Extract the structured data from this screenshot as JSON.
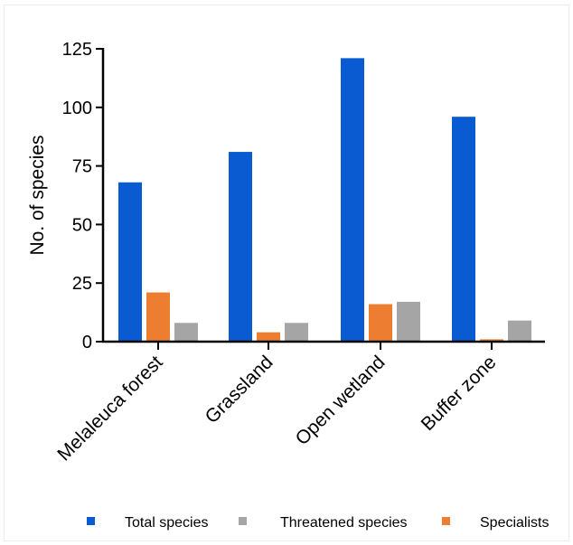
{
  "chart_data": {
    "type": "bar",
    "title": "",
    "xlabel": "",
    "ylabel": "No. of species",
    "ylim": [
      0,
      125
    ],
    "yticks": [
      0,
      25,
      50,
      75,
      100,
      125
    ],
    "grid": false,
    "legend_position": "bottom",
    "categories": [
      "Melaleuca forest",
      "Grassland",
      "Open wetland",
      "Buffer zone"
    ],
    "series": [
      {
        "name": "Total species",
        "color": "#0a5bd1",
        "values": [
          68,
          81,
          121,
          96
        ]
      },
      {
        "name": "Specialists",
        "color": "#ed7d31",
        "values": [
          21,
          4,
          16,
          1
        ]
      },
      {
        "name": "Threatened species",
        "color": "#a5a5a5",
        "values": [
          8,
          8,
          17,
          9
        ]
      }
    ],
    "legend_order": [
      "Total species",
      "Threatened species",
      "Specialists"
    ]
  }
}
